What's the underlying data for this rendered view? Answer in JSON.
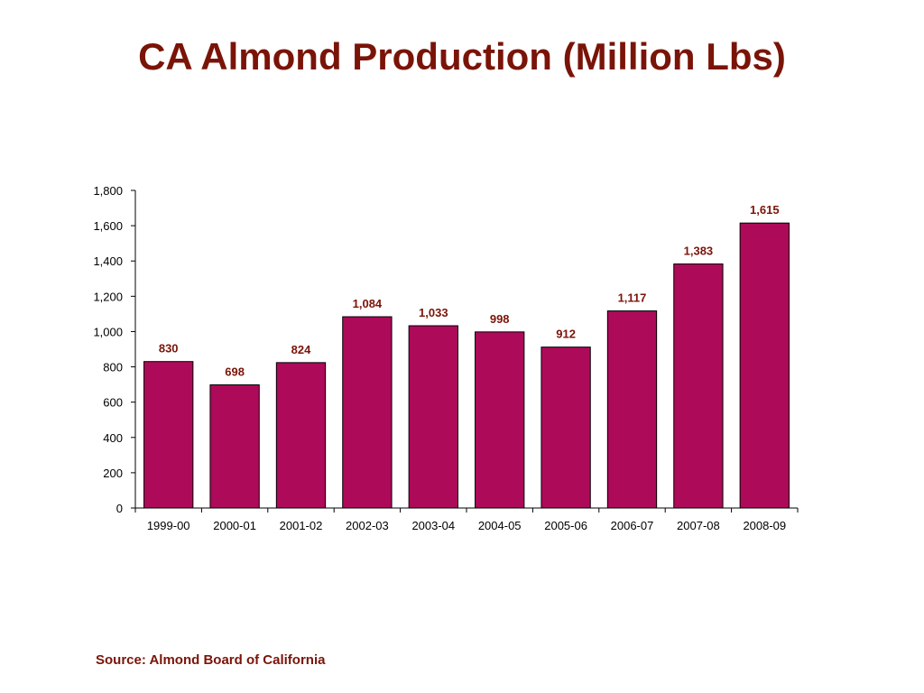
{
  "title": "CA Almond Production (Million Lbs)",
  "source": "Source: Almond Board of California",
  "colors": {
    "title": "#7a1408",
    "bar_fill": "#ad0a5a",
    "bar_stroke": "#000000",
    "data_label": "#7a1408"
  },
  "chart_data": {
    "type": "bar",
    "title": "CA Almond Production (Million Lbs)",
    "xlabel": "",
    "ylabel": "",
    "categories": [
      "1999-00",
      "2000-01",
      "2001-02",
      "2002-03",
      "2003-04",
      "2004-05",
      "2005-06",
      "2006-07",
      "2007-08",
      "2008-09"
    ],
    "values": [
      830,
      698,
      824,
      1084,
      1033,
      998,
      912,
      1117,
      1383,
      1615
    ],
    "data_labels": [
      "830",
      "698",
      "824",
      "1,084",
      "1,033",
      "998",
      "912",
      "1,117",
      "1,383",
      "1,615"
    ],
    "ylim": [
      0,
      1800
    ],
    "yticks": [
      0,
      200,
      400,
      600,
      800,
      1000,
      1200,
      1400,
      1600,
      1800
    ],
    "ytick_labels": [
      "0",
      "200",
      "400",
      "600",
      "800",
      "1,000",
      "1,200",
      "1,400",
      "1,600",
      "1,800"
    ],
    "grid": false,
    "legend": "none"
  }
}
